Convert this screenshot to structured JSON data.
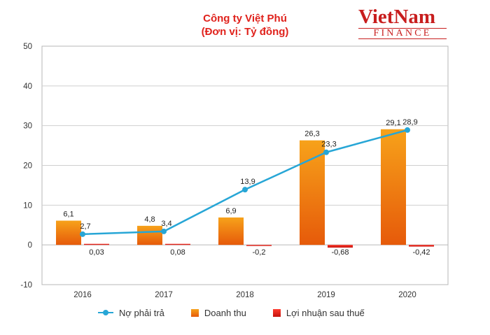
{
  "header": {
    "title": "Công ty Việt Phú",
    "subtitle": "(Đơn vị: Tỷ đồng)"
  },
  "logo": {
    "top": "VietNam",
    "bottom": "FINANCE"
  },
  "colors": {
    "line": "#27a6d6",
    "revenue_top": "#f7a21a",
    "revenue_bottom": "#e65a0a",
    "profit_top": "#ff3b2e",
    "profit_bottom": "#c4120c",
    "title": "#e0221c"
  },
  "legend": {
    "line_label": "Nợ phải trả",
    "revenue_label": "Doanh thu",
    "profit_label": "Lợi nhuận sau thuế"
  },
  "chart_data": {
    "type": "bar",
    "title": "Công ty Việt Phú",
    "subtitle": "(Đơn vị: Tỷ đồng)",
    "categories": [
      "2016",
      "2017",
      "2018",
      "2019",
      "2020"
    ],
    "ylim": [
      -10,
      50
    ],
    "yticks": [
      -10,
      0,
      10,
      20,
      30,
      40,
      50
    ],
    "grid": true,
    "legend_position": "bottom",
    "series": [
      {
        "name": "Nợ phải trả",
        "kind": "line",
        "values": [
          2.7,
          3.4,
          13.9,
          23.3,
          28.9
        ],
        "labels": [
          "2,7",
          "3,4",
          "13,9",
          "23,3",
          "28,9"
        ]
      },
      {
        "name": "Doanh thu",
        "kind": "bar",
        "values": [
          6.1,
          4.8,
          6.9,
          26.3,
          29.1
        ],
        "labels": [
          "6,1",
          "4,8",
          "6,9",
          "26,3",
          "29,1"
        ]
      },
      {
        "name": "Lợi nhuận sau thuế",
        "kind": "bar",
        "values": [
          0.03,
          0.08,
          -0.2,
          -0.68,
          -0.42
        ],
        "labels": [
          "0,03",
          "0,08",
          "-0,2",
          "-0,68",
          "-0,42"
        ]
      }
    ]
  }
}
